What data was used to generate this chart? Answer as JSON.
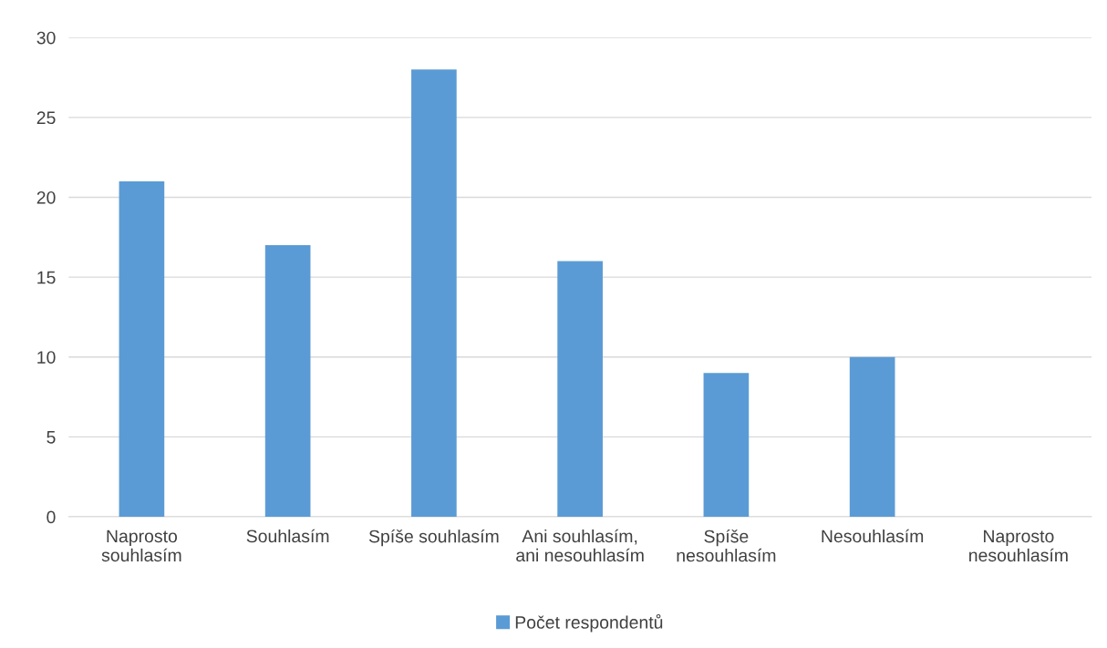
{
  "chart_data": {
    "type": "bar",
    "categories": [
      "Naprosto\nsouhlasím",
      "Souhlasím",
      "Spíše souhlasím",
      "Ani souhlasím,\nani nesouhlasím",
      "Spíše\nnesouhlasím",
      "Nesouhlasím",
      "Naprosto\nnesouhlasím"
    ],
    "series": [
      {
        "name": "Počet respondentů",
        "color": "#5b9bd5",
        "values": [
          21,
          17,
          28,
          16,
          9,
          10,
          0
        ]
      }
    ],
    "ylim": [
      0,
      30
    ],
    "yticks": [
      0,
      5,
      10,
      15,
      20,
      25,
      30
    ],
    "grid": "y",
    "legend": "bottom"
  }
}
